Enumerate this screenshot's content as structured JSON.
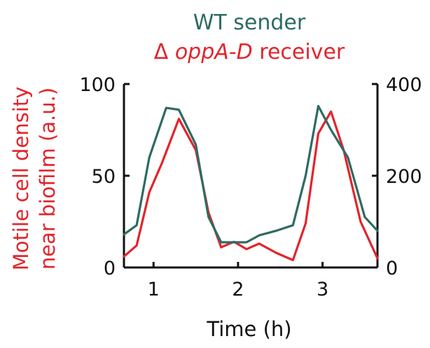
{
  "chart_data": {
    "type": "line",
    "title_line1": "WT sender",
    "title_line2_prefix": "Δ",
    "title_line2_italic": "oppA-D",
    "title_line2_suffix": "receiver",
    "xlabel": "Time (h)",
    "ylabel_line1": "Motile cell density",
    "ylabel_line2": "near biofilm (a.u.)",
    "xlim": [
      0.65,
      3.65
    ],
    "ylim_left": [
      0,
      100
    ],
    "ylim_right": [
      0,
      400
    ],
    "x_ticks": [
      1,
      2,
      3
    ],
    "y_left_ticks": [
      0,
      50,
      100
    ],
    "y_right_ticks": [
      0,
      200,
      400
    ],
    "colors": {
      "red": "#e3242b",
      "green": "#2e6b62",
      "axis": "#111111"
    },
    "series": [
      {
        "axis": "left",
        "color": "#e3242b",
        "x": [
          0.65,
          0.8,
          0.95,
          1.1,
          1.3,
          1.5,
          1.65,
          1.8,
          1.95,
          2.1,
          2.25,
          2.45,
          2.65,
          2.8,
          2.95,
          3.1,
          3.25,
          3.45,
          3.65
        ],
        "y": [
          6,
          12,
          41,
          57,
          81,
          64,
          30,
          11,
          14,
          10,
          13,
          8,
          4,
          24,
          73,
          85,
          64,
          25,
          5
        ]
      },
      {
        "axis": "right",
        "color": "#2e6b62",
        "x": [
          0.65,
          0.8,
          0.95,
          1.15,
          1.3,
          1.5,
          1.65,
          1.8,
          1.95,
          2.1,
          2.25,
          2.45,
          2.65,
          2.8,
          2.95,
          3.1,
          3.3,
          3.5,
          3.65
        ],
        "y": [
          72,
          92,
          240,
          348,
          344,
          268,
          110,
          55,
          55,
          55,
          70,
          80,
          92,
          200,
          352,
          300,
          240,
          110,
          80
        ]
      }
    ]
  }
}
